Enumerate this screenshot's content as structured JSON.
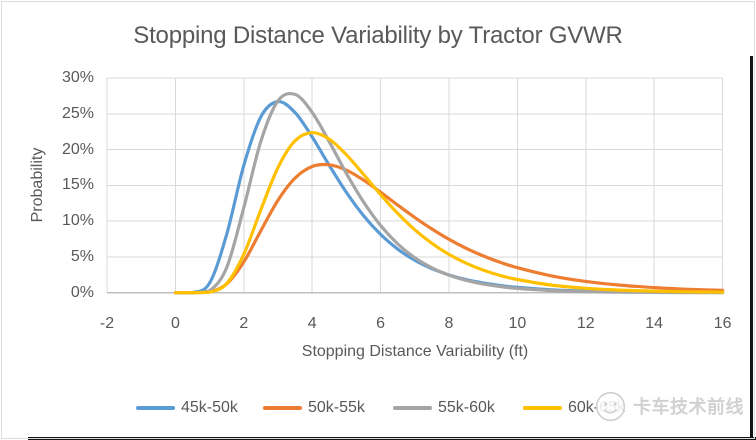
{
  "watermark": {
    "text": "卡车技术前线",
    "logo": "smiley-face-logo"
  },
  "colors": {
    "text": "#595959",
    "gridline": "#D9D9D9",
    "axis_line": "#BFBFBF",
    "background": "#FFFFFF",
    "series_blue": "#5B9BD5",
    "series_orange": "#ED7D31",
    "series_gray": "#A5A5A5",
    "series_yellow": "#FFC000"
  },
  "chart_data": {
    "type": "line",
    "title": "Stopping Distance Variability by Tractor GVWR",
    "xlabel": "Stopping Distance Variability (ft)",
    "ylabel": "Probability",
    "xlim": [
      -2,
      16
    ],
    "ylim": [
      0,
      30
    ],
    "grid": true,
    "legend_position": "bottom",
    "x_ticks": [
      -2,
      0,
      2,
      4,
      6,
      8,
      10,
      12,
      14,
      16
    ],
    "x_tick_labels": [
      "-2",
      "0",
      "2",
      "4",
      "6",
      "8",
      "10",
      "12",
      "14",
      "16"
    ],
    "y_ticks": [
      0,
      5,
      10,
      15,
      20,
      25,
      30
    ],
    "y_tick_labels": [
      "0%",
      "5%",
      "10%",
      "15%",
      "20%",
      "25%",
      "30%"
    ],
    "x": [
      0,
      0.5,
      1,
      1.5,
      2,
      2.5,
      3,
      3.5,
      4,
      4.5,
      5,
      5.5,
      6,
      6.5,
      7,
      7.5,
      8,
      8.5,
      9,
      9.5,
      10,
      11,
      12,
      13,
      14,
      15,
      16
    ],
    "series": [
      {
        "name": "45k-50k",
        "color": "#5B9BD5",
        "peak": {
          "x": 3.0,
          "y_pct": 26.7
        },
        "values_pct": [
          0,
          0.01,
          1.36,
          8.16,
          17.8,
          24.61,
          26.71,
          25.18,
          21.77,
          17.79,
          14.02,
          10.78,
          8.15,
          6.1,
          4.53,
          3.36,
          2.48,
          1.83,
          1.36,
          1.0,
          0.74,
          0.41,
          0.23,
          0.13,
          0.08,
          0.05,
          0.03
        ]
      },
      {
        "name": "50k-55k",
        "color": "#ED7D31",
        "peak": {
          "x": 4.4,
          "y_pct": 17.9
        },
        "values_pct": [
          0,
          0,
          0.11,
          1.23,
          4.3,
          8.68,
          12.93,
          16.03,
          17.64,
          17.88,
          17.13,
          15.75,
          14.05,
          12.25,
          10.51,
          8.9,
          7.46,
          6.21,
          5.15,
          4.24,
          3.49,
          2.35,
          1.58,
          1.06,
          0.71,
          0.48,
          0.33
        ]
      },
      {
        "name": "55k-60k",
        "color": "#A5A5A5",
        "peak": {
          "x": 3.4,
          "y_pct": 28.0
        },
        "values_pct": [
          0,
          0,
          0.26,
          3.52,
          11.89,
          21.19,
          26.82,
          27.72,
          25.21,
          21.1,
          16.68,
          12.69,
          9.39,
          6.82,
          4.89,
          3.48,
          2.46,
          1.73,
          1.22,
          0.86,
          0.6,
          0.3,
          0.15,
          0.08,
          0.04,
          0.02,
          0.01
        ]
      },
      {
        "name": "60k-65k",
        "color": "#FFC000",
        "peak": {
          "x": 4.0,
          "y_pct": 22.4
        },
        "values_pct": [
          0,
          0,
          0.07,
          1.28,
          5.37,
          11.61,
          17.5,
          21.23,
          22.37,
          21.46,
          19.28,
          16.54,
          13.71,
          11.08,
          8.8,
          6.9,
          5.35,
          4.12,
          3.16,
          2.41,
          1.84,
          1.06,
          0.62,
          0.36,
          0.21,
          0.12,
          0.07
        ]
      }
    ]
  }
}
